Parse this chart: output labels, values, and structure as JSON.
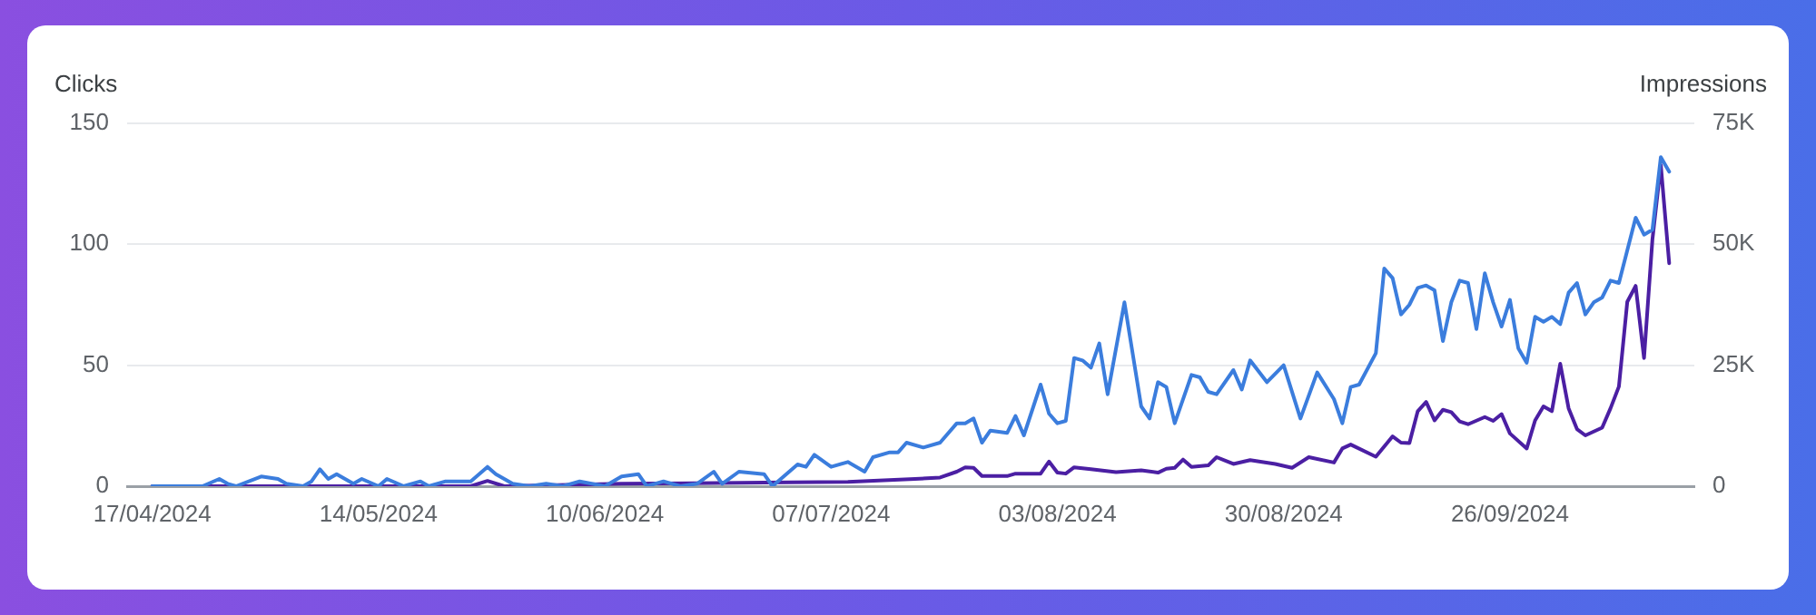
{
  "chart_data": {
    "type": "line",
    "ylabel": "Clicks",
    "y2label": "Impressions",
    "grid": "y",
    "legend": false,
    "marker": "none",
    "line_style": "solid",
    "xlim": [
      "2024-04-14",
      "2024-10-18"
    ],
    "xticks": [
      {
        "value": "2024-04-17",
        "label": "17/04/2024"
      },
      {
        "value": "2024-05-14",
        "label": "14/05/2024"
      },
      {
        "value": "2024-06-10",
        "label": "10/06/2024"
      },
      {
        "value": "2024-07-07",
        "label": "07/07/2024"
      },
      {
        "value": "2024-08-03",
        "label": "03/08/2024"
      },
      {
        "value": "2024-08-30",
        "label": "30/08/2024"
      },
      {
        "value": "2024-09-26",
        "label": "26/09/2024"
      }
    ],
    "ylim": [
      0,
      150
    ],
    "yticks": [
      0,
      50,
      100,
      150
    ],
    "y2lim": [
      0,
      75000
    ],
    "y2ticks": [
      {
        "value": 0,
        "label": "0"
      },
      {
        "value": 25000,
        "label": "25K"
      },
      {
        "value": 50000,
        "label": "50K"
      },
      {
        "value": 75000,
        "label": "75K"
      }
    ],
    "series": [
      {
        "color": "#3b7ddd",
        "x": [
          "2024-04-17",
          "2024-04-23",
          "2024-04-25",
          "2024-04-26",
          "2024-04-27",
          "2024-04-30",
          "2024-05-02",
          "2024-05-03",
          "2024-05-05",
          "2024-05-06",
          "2024-05-07",
          "2024-05-08",
          "2024-05-09",
          "2024-05-11",
          "2024-05-12",
          "2024-05-14",
          "2024-05-15",
          "2024-05-17",
          "2024-05-19",
          "2024-05-20",
          "2024-05-22",
          "2024-05-25",
          "2024-05-27",
          "2024-05-28",
          "2024-05-30",
          "2024-06-01",
          "2024-06-03",
          "2024-06-05",
          "2024-06-07",
          "2024-06-10",
          "2024-06-12",
          "2024-06-14",
          "2024-06-15",
          "2024-06-17",
          "2024-06-19",
          "2024-06-21",
          "2024-06-23",
          "2024-06-24",
          "2024-06-26",
          "2024-06-29",
          "2024-06-30",
          "2024-07-01",
          "2024-07-03",
          "2024-07-04",
          "2024-07-05",
          "2024-07-07",
          "2024-07-09",
          "2024-07-11",
          "2024-07-12",
          "2024-07-14",
          "2024-07-15",
          "2024-07-16",
          "2024-07-18",
          "2024-07-20",
          "2024-07-22",
          "2024-07-23",
          "2024-07-24",
          "2024-07-25",
          "2024-07-26",
          "2024-07-28",
          "2024-07-29",
          "2024-07-30",
          "2024-08-01",
          "2024-08-02",
          "2024-08-03",
          "2024-08-04",
          "2024-08-05",
          "2024-08-06",
          "2024-08-07",
          "2024-08-08",
          "2024-08-09",
          "2024-08-11",
          "2024-08-13",
          "2024-08-14",
          "2024-08-15",
          "2024-08-16",
          "2024-08-17",
          "2024-08-19",
          "2024-08-20",
          "2024-08-21",
          "2024-08-22",
          "2024-08-24",
          "2024-08-25",
          "2024-08-26",
          "2024-08-28",
          "2024-08-30",
          "2024-09-01",
          "2024-09-03",
          "2024-09-05",
          "2024-09-06",
          "2024-09-07",
          "2024-09-08",
          "2024-09-10",
          "2024-09-11",
          "2024-09-12",
          "2024-09-13",
          "2024-09-14",
          "2024-09-15",
          "2024-09-16",
          "2024-09-17",
          "2024-09-18",
          "2024-09-19",
          "2024-09-20",
          "2024-09-21",
          "2024-09-22",
          "2024-09-23",
          "2024-09-24",
          "2024-09-25",
          "2024-09-26",
          "2024-09-27",
          "2024-09-28",
          "2024-09-29",
          "2024-09-30",
          "2024-10-01",
          "2024-10-02",
          "2024-10-03",
          "2024-10-04",
          "2024-10-05",
          "2024-10-06",
          "2024-10-07",
          "2024-10-08",
          "2024-10-09",
          "2024-10-11",
          "2024-10-12",
          "2024-10-13",
          "2024-10-14",
          "2024-10-15"
        ],
        "values": [
          0,
          0,
          3,
          1,
          0,
          4,
          3,
          1,
          0,
          2,
          7,
          3,
          5,
          1,
          3,
          0,
          3,
          0,
          2,
          0,
          2,
          2,
          8,
          5,
          1,
          0,
          1,
          0,
          2,
          0,
          4,
          5,
          0,
          2,
          0,
          1,
          6,
          1,
          6,
          5,
          0,
          3,
          9,
          8,
          13,
          8,
          10,
          6,
          12,
          14,
          14,
          18,
          16,
          18,
          26,
          26,
          28,
          18,
          23,
          22,
          29,
          21,
          42,
          30,
          26,
          27,
          53,
          52,
          49,
          59,
          38,
          76,
          33,
          28,
          43,
          41,
          26,
          46,
          45,
          39,
          38,
          48,
          40,
          52,
          43,
          50,
          28,
          47,
          36,
          26,
          41,
          42,
          55,
          90,
          86,
          71,
          75,
          82,
          83,
          81,
          60,
          76,
          85,
          84,
          65,
          88,
          76,
          66,
          77,
          57,
          51,
          70,
          68,
          70,
          67,
          80,
          84,
          71,
          76,
          78,
          85,
          84,
          111,
          104,
          106,
          136,
          130
        ]
      },
      {
        "color": "#4b1fa3",
        "axis": "y2",
        "x": [
          "2024-04-17",
          "2024-05-25",
          "2024-05-27",
          "2024-05-29",
          "2024-06-12",
          "2024-07-02",
          "2024-07-09",
          "2024-07-17",
          "2024-07-20",
          "2024-07-22",
          "2024-07-23",
          "2024-07-24",
          "2024-07-25",
          "2024-07-28",
          "2024-07-29",
          "2024-08-01",
          "2024-08-02",
          "2024-08-03",
          "2024-08-04",
          "2024-08-05",
          "2024-08-07",
          "2024-08-10",
          "2024-08-13",
          "2024-08-15",
          "2024-08-16",
          "2024-08-17",
          "2024-08-18",
          "2024-08-19",
          "2024-08-21",
          "2024-08-22",
          "2024-08-24",
          "2024-08-26",
          "2024-08-29",
          "2024-08-31",
          "2024-09-02",
          "2024-09-05",
          "2024-09-06",
          "2024-09-07",
          "2024-09-10",
          "2024-09-12",
          "2024-09-13",
          "2024-09-14",
          "2024-09-15",
          "2024-09-16",
          "2024-09-17",
          "2024-09-18",
          "2024-09-19",
          "2024-09-20",
          "2024-09-21",
          "2024-09-23",
          "2024-09-24",
          "2024-09-25",
          "2024-09-26",
          "2024-09-28",
          "2024-09-29",
          "2024-09-30",
          "2024-10-01",
          "2024-10-02",
          "2024-10-03",
          "2024-10-04",
          "2024-10-05",
          "2024-10-07",
          "2024-10-08",
          "2024-10-09",
          "2024-10-10",
          "2024-10-11",
          "2024-10-12",
          "2024-10-13",
          "2024-10-14",
          "2024-10-15"
        ],
        "values": [
          0,
          0,
          1100,
          0,
          500,
          800,
          900,
          1500,
          1800,
          3000,
          3900,
          3800,
          2100,
          2100,
          2600,
          2600,
          5100,
          2800,
          2600,
          3900,
          3500,
          2900,
          3300,
          2800,
          3600,
          3800,
          5500,
          4000,
          4300,
          6000,
          4600,
          5400,
          4600,
          3800,
          6000,
          4900,
          7800,
          8600,
          6100,
          10300,
          9000,
          8900,
          15500,
          17400,
          13600,
          15800,
          15300,
          13400,
          12800,
          14300,
          13500,
          14900,
          10900,
          7800,
          13600,
          16500,
          15500,
          25300,
          16100,
          11800,
          10500,
          12100,
          16100,
          20600,
          38100,
          41400,
          26500,
          51000,
          66400,
          46100
        ]
      }
    ]
  }
}
